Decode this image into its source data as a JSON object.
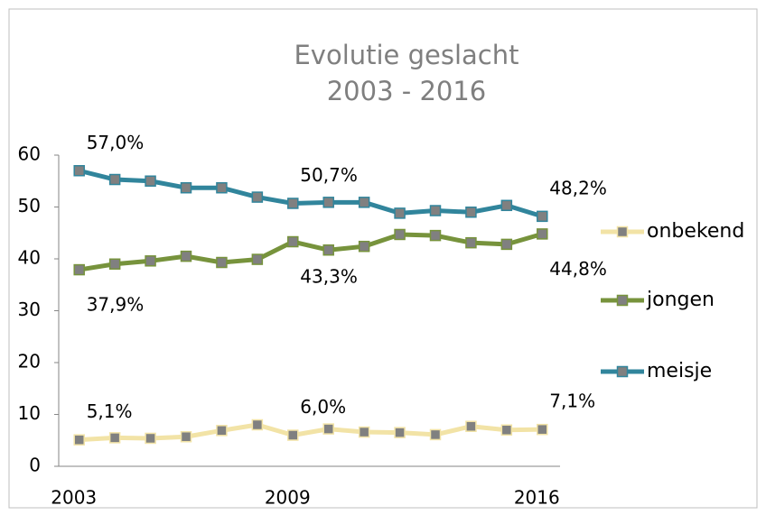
{
  "chart_data": {
    "type": "line",
    "title": "Evolutie geslacht",
    "subtitle": "2003 - 2016",
    "categories": [
      "2003",
      null,
      null,
      null,
      null,
      null,
      "2009",
      null,
      null,
      null,
      null,
      null,
      null,
      "2016"
    ],
    "series": [
      {
        "name": "onbekend",
        "color": "#f2e3a6",
        "values": [
          5.1,
          5.5,
          5.4,
          5.7,
          6.9,
          8.0,
          6.0,
          7.2,
          6.6,
          6.5,
          6.1,
          7.7,
          7.0,
          7.1
        ],
        "value_labels": [
          "5,1%",
          null,
          null,
          null,
          null,
          null,
          "6,0%",
          null,
          null,
          null,
          null,
          null,
          null,
          "7,1%"
        ]
      },
      {
        "name": "jongen",
        "color": "#77933c",
        "values": [
          37.9,
          39.0,
          39.6,
          40.5,
          39.3,
          39.9,
          43.3,
          41.7,
          42.4,
          44.7,
          44.5,
          43.1,
          42.8,
          44.8
        ],
        "value_labels": [
          "37,9%",
          null,
          null,
          null,
          null,
          null,
          "43,3%",
          null,
          null,
          null,
          null,
          null,
          null,
          "44,8%"
        ]
      },
      {
        "name": "meisje",
        "color": "#31859c",
        "values": [
          57.0,
          55.3,
          55.0,
          53.7,
          53.7,
          51.9,
          50.7,
          50.9,
          50.9,
          48.8,
          49.3,
          49.0,
          50.3,
          48.2
        ],
        "value_labels": [
          "57,0%",
          null,
          null,
          null,
          null,
          null,
          "50,7%",
          null,
          null,
          null,
          null,
          null,
          null,
          "48,2%"
        ]
      }
    ],
    "ylim": [
      0,
      60
    ],
    "yticks": [
      0,
      10,
      20,
      30,
      40,
      50,
      60
    ],
    "marker_color": "#808080",
    "legend": "right"
  }
}
